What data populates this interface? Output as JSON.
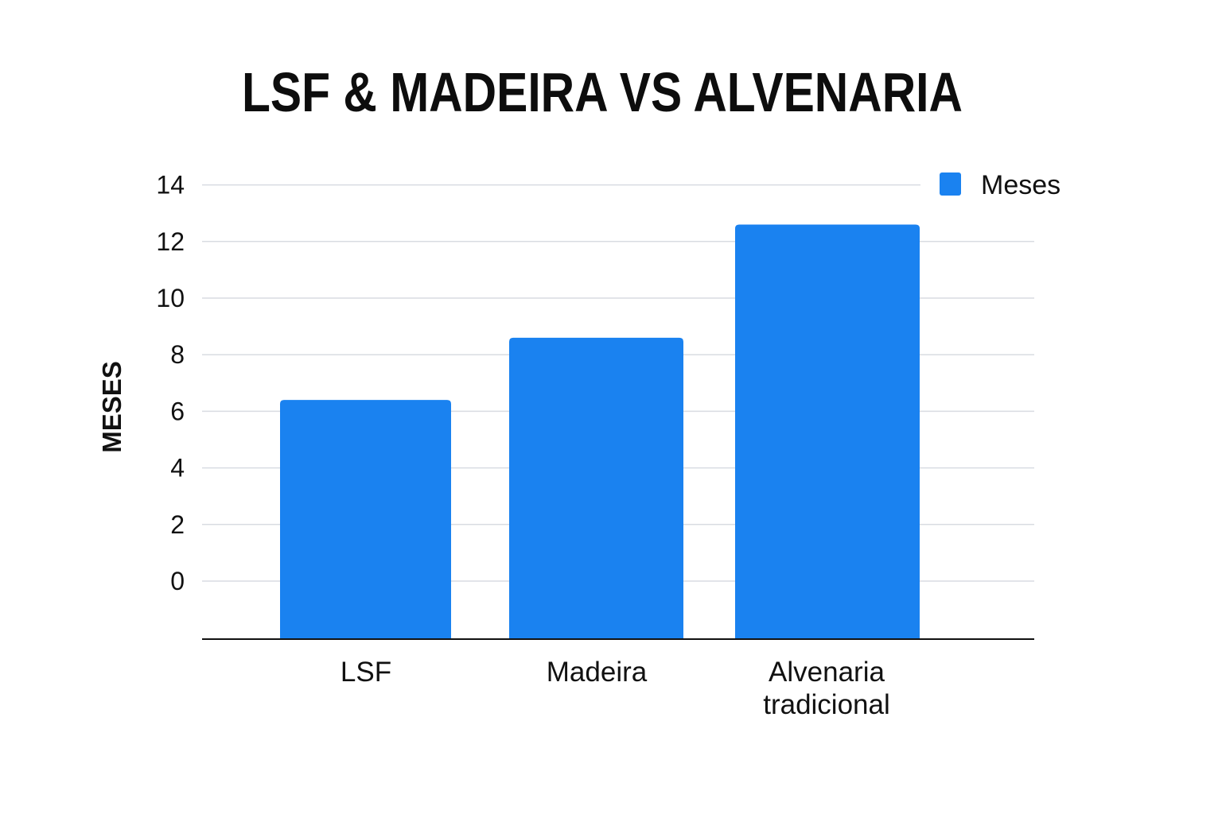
{
  "chart_data": {
    "type": "bar",
    "title": "LSF & MADEIRA VS ALVENARIA",
    "ylabel": "MESES",
    "xlabel": "",
    "categories": [
      "LSF",
      [
        "Madeira"
      ],
      [
        "Alvenaria",
        "tradicional"
      ]
    ],
    "category_labels": [
      [
        "LSF"
      ],
      [
        "Madeira"
      ],
      [
        "Alvenaria",
        "tradicional"
      ]
    ],
    "series": [
      {
        "name": "Meses",
        "values": [
          6.4,
          8.6,
          12.6
        ],
        "color": "#1a82f0"
      }
    ],
    "yticks": [
      0,
      2,
      4,
      6,
      8,
      10,
      12,
      14
    ],
    "ylim": [
      -2,
      14
    ],
    "grid": true,
    "legend": "top-right"
  }
}
